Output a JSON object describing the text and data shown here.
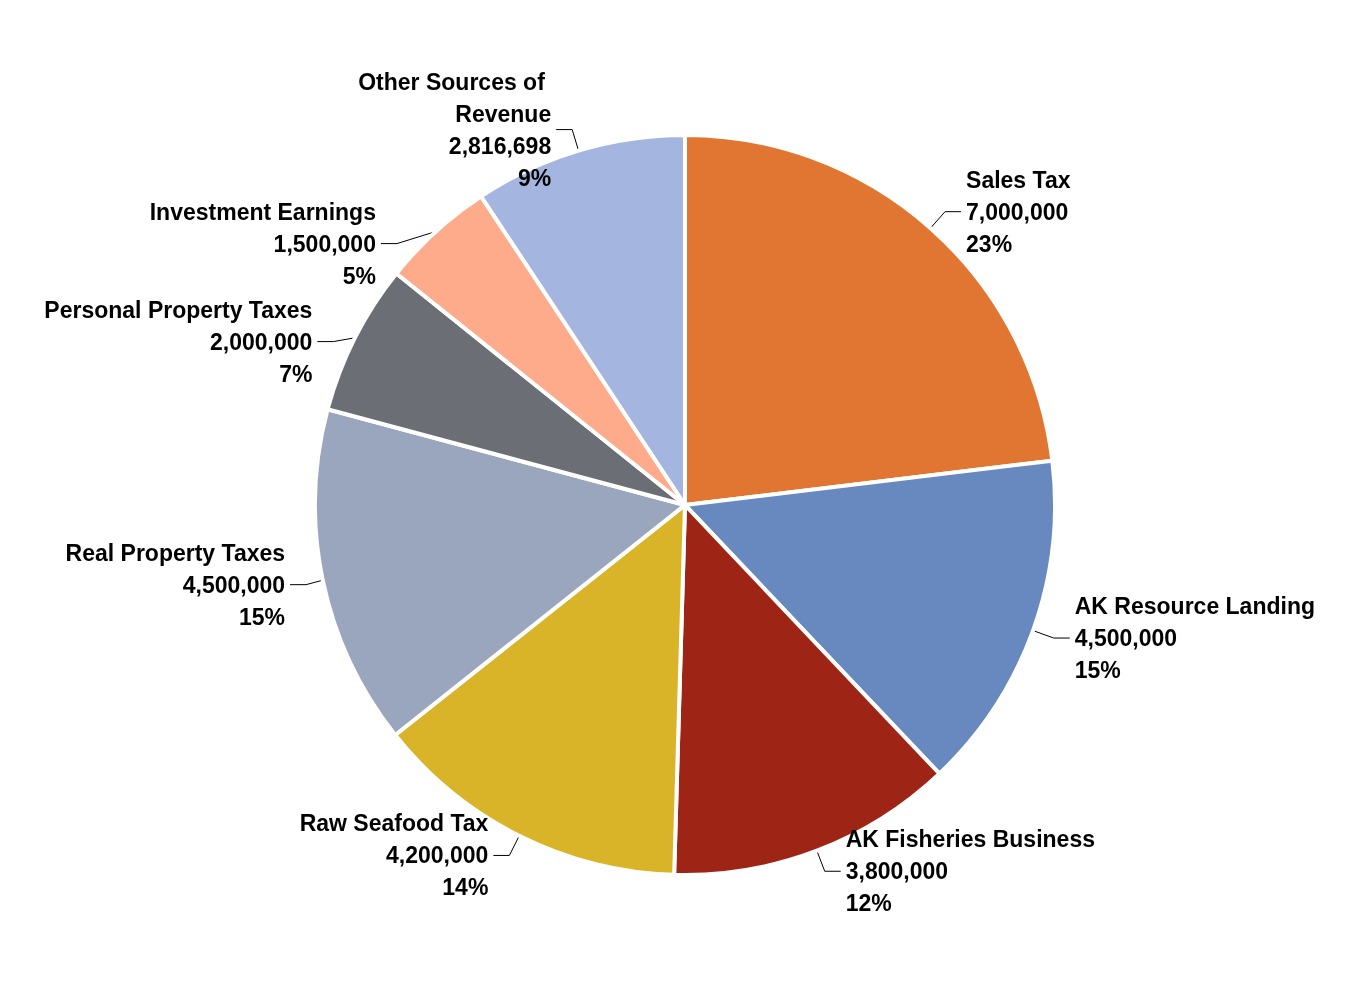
{
  "chart_data": {
    "type": "pie",
    "categories": [
      "Sales Tax",
      "AK Resource Landing",
      "AK Fisheries Business",
      "Raw Seafood Tax",
      "Real Property Taxes",
      "Personal Property Taxes",
      "Investment Earnings",
      "Other Sources of Revenue"
    ],
    "values": [
      7000000,
      4500000,
      3800000,
      4200000,
      4500000,
      2000000,
      1500000,
      2816698
    ],
    "value_labels": [
      "7,000,000\n23%",
      "4,500,000\n15%",
      "3,800,000\n12%",
      "4,200,000\n14%",
      "4,500,000\n15%",
      "2,000,000\n7%",
      "1,500,000\n5%",
      "2,816,698\n9%"
    ],
    "colors": [
      "#e07631",
      "#6888c0",
      "#9e2515",
      "#d9b428",
      "#9aa5be",
      "#6b6e74",
      "#fdab8b",
      "#a4b6e0"
    ],
    "legend": false
  }
}
